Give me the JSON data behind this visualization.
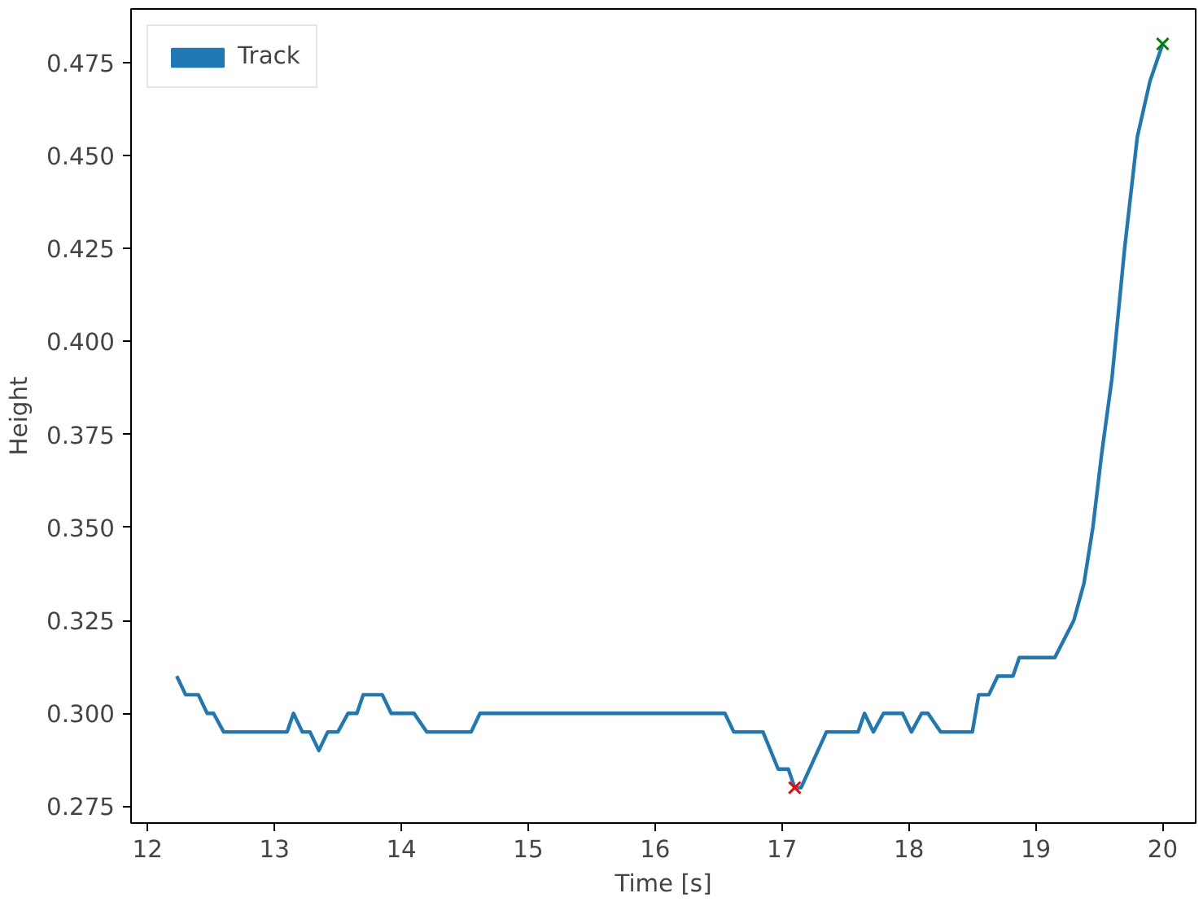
{
  "chart_data": {
    "type": "line",
    "xlabel": "Time [s]",
    "ylabel": "Height",
    "xlim": [
      11.87,
      20.26
    ],
    "ylim": [
      0.2705,
      0.4894
    ],
    "xticks": [
      12,
      13,
      14,
      15,
      16,
      17,
      18,
      19,
      20
    ],
    "yticks": [
      {
        "value": 0.275,
        "label": "0.275"
      },
      {
        "value": 0.3,
        "label": "0.300"
      },
      {
        "value": 0.325,
        "label": "0.325"
      },
      {
        "value": 0.35,
        "label": "0.350"
      },
      {
        "value": 0.375,
        "label": "0.375"
      },
      {
        "value": 0.4,
        "label": "0.400"
      },
      {
        "value": 0.425,
        "label": "0.425"
      },
      {
        "value": 0.45,
        "label": "0.450"
      },
      {
        "value": 0.475,
        "label": "0.475"
      }
    ],
    "legend": "top left",
    "grid": false,
    "series": [
      {
        "name": "Track",
        "color": "#1f77b4",
        "x": [
          12.23,
          12.3,
          12.4,
          12.47,
          12.52,
          12.6,
          13.1,
          13.15,
          13.22,
          13.28,
          13.35,
          13.42,
          13.5,
          13.58,
          13.65,
          13.7,
          13.85,
          13.92,
          14.1,
          14.2,
          14.55,
          14.62,
          16.55,
          16.62,
          16.85,
          16.97,
          17.05,
          17.1,
          17.15,
          17.35,
          17.6,
          17.65,
          17.72,
          17.8,
          17.95,
          18.02,
          18.1,
          18.15,
          18.25,
          18.5,
          18.55,
          18.63,
          18.7,
          18.82,
          18.87,
          19.15,
          19.3,
          19.38,
          19.45,
          19.52,
          19.6,
          19.7,
          19.8,
          19.9,
          20.0
        ],
        "values": [
          0.31,
          0.305,
          0.305,
          0.3,
          0.3,
          0.295,
          0.295,
          0.3,
          0.295,
          0.295,
          0.29,
          0.295,
          0.295,
          0.3,
          0.3,
          0.305,
          0.305,
          0.3,
          0.3,
          0.295,
          0.295,
          0.3,
          0.3,
          0.295,
          0.295,
          0.285,
          0.285,
          0.28,
          0.28,
          0.295,
          0.295,
          0.3,
          0.295,
          0.3,
          0.3,
          0.295,
          0.3,
          0.3,
          0.295,
          0.295,
          0.305,
          0.305,
          0.31,
          0.31,
          0.315,
          0.315,
          0.325,
          0.335,
          0.35,
          0.37,
          0.39,
          0.425,
          0.455,
          0.47,
          0.48
        ]
      },
      {
        "type": "scatter",
        "marker": "cross",
        "color": "#ff0000",
        "x": [
          17.1
        ],
        "values": [
          0.28
        ]
      },
      {
        "type": "scatter",
        "marker": "cross",
        "color": "#008000",
        "x": [
          20.0
        ],
        "values": [
          0.48
        ]
      }
    ]
  }
}
